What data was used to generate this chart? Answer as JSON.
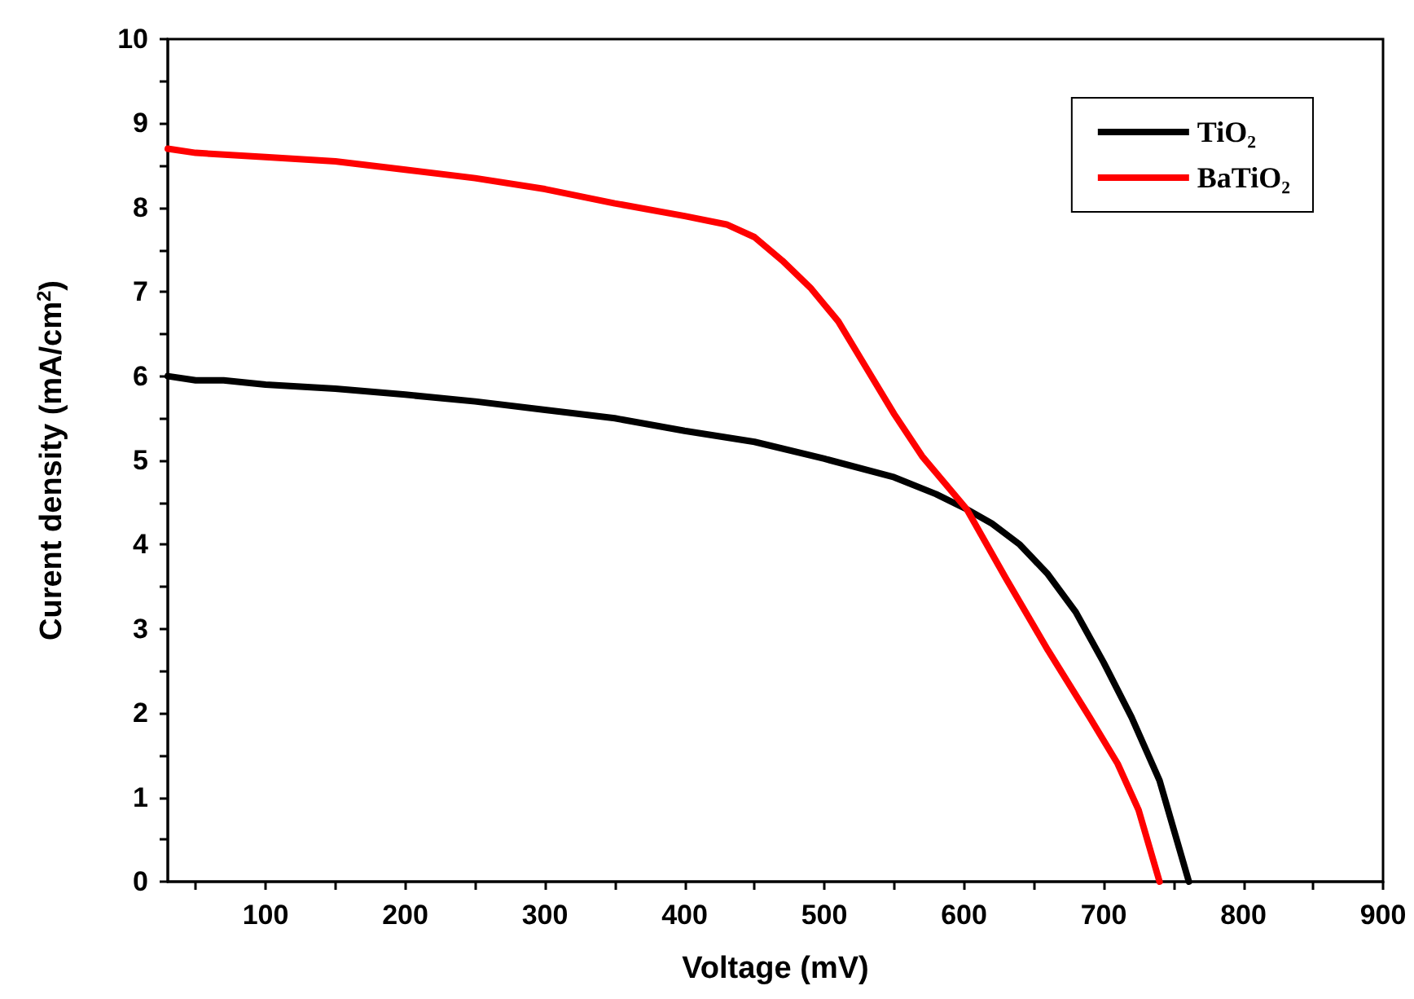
{
  "chart_data": {
    "type": "line",
    "xlabel": "Voltage (mV)",
    "ylabel": "Curent density (mA/cm$^{2}$)",
    "xlim": [
      30,
      900
    ],
    "xticks": [
      {
        "value": 50,
        "label": null
      },
      100,
      {
        "value": 150,
        "label": null
      },
      200,
      {
        "value": 250,
        "label": null
      },
      300,
      {
        "value": 350,
        "label": null
      },
      400,
      {
        "value": 450,
        "label": null
      },
      500,
      {
        "value": 550,
        "label": null
      },
      600,
      {
        "value": 650,
        "label": null
      },
      700,
      {
        "value": 750,
        "label": null
      },
      800,
      {
        "value": 850,
        "label": null
      },
      900
    ],
    "ylim": [
      0,
      10
    ],
    "yticks": [
      0,
      {
        "value": 0.5,
        "label": null
      },
      1,
      {
        "value": 1.5,
        "label": null
      },
      2,
      {
        "value": 2.5,
        "label": null
      },
      3,
      {
        "value": 3.5,
        "label": null
      },
      4,
      {
        "value": 4.5,
        "label": null
      },
      5,
      {
        "value": 5.5,
        "label": null
      },
      6,
      {
        "value": 6.5,
        "label": null
      },
      7,
      {
        "value": 7.5,
        "label": null
      },
      8,
      {
        "value": 8.5,
        "label": null
      },
      9,
      {
        "value": 9.5,
        "label": null
      },
      10
    ],
    "grid": false,
    "legend": "top right",
    "marker": "none",
    "line_style": "solid",
    "series": [
      {
        "name": "TiO₂",
        "color": "#000000",
        "x": [
          30,
          50,
          70,
          100,
          150,
          200,
          250,
          300,
          350,
          400,
          450,
          500,
          550,
          580,
          602,
          620,
          640,
          660,
          680,
          700,
          720,
          740,
          761
        ],
        "values": [
          6.0,
          5.95,
          5.95,
          5.9,
          5.85,
          5.78,
          5.7,
          5.6,
          5.5,
          5.35,
          5.22,
          5.02,
          4.8,
          4.6,
          4.42,
          4.25,
          4.0,
          3.65,
          3.2,
          2.6,
          1.95,
          1.2,
          0
        ]
      },
      {
        "name": "BaTiO₂",
        "color": "#ff0000",
        "x": [
          30,
          50,
          100,
          150,
          200,
          250,
          300,
          350,
          400,
          430,
          450,
          470,
          490,
          510,
          530,
          550,
          570,
          602,
          630,
          660,
          690,
          710,
          725,
          740
        ],
        "values": [
          8.7,
          8.65,
          8.6,
          8.55,
          8.45,
          8.35,
          8.22,
          8.05,
          7.9,
          7.8,
          7.65,
          7.37,
          7.05,
          6.65,
          6.1,
          5.55,
          5.05,
          4.42,
          3.6,
          2.75,
          1.95,
          1.4,
          0.85,
          0
        ]
      }
    ]
  }
}
